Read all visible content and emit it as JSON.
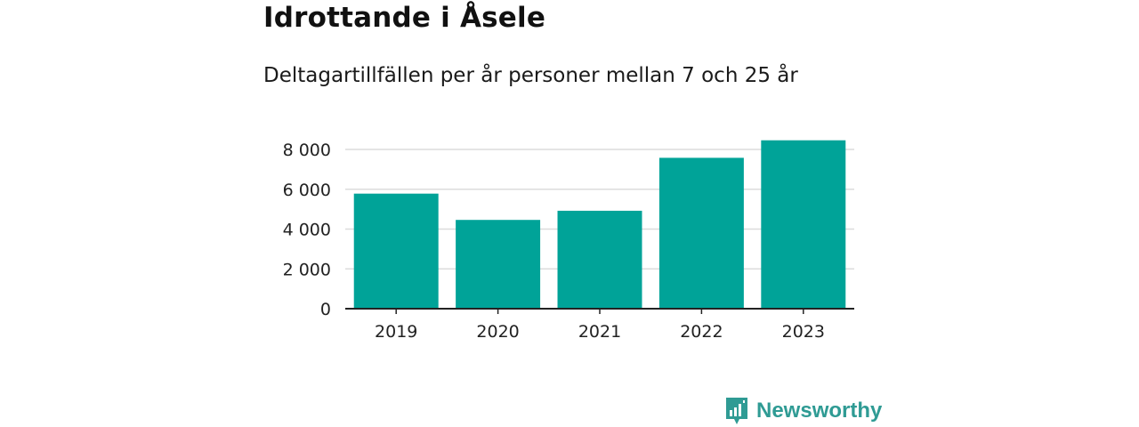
{
  "title": "Idrottande i Åsele",
  "subtitle": "Deltagartillfällen per år personer mellan 7 och 25 år",
  "brand": {
    "name": "Newsworthy",
    "icon": "newsworthy-logo-icon",
    "color": "#2f9b94"
  },
  "chart_data": {
    "type": "bar",
    "categories": [
      "2019",
      "2020",
      "2021",
      "2022",
      "2023"
    ],
    "values": [
      5780,
      4460,
      4920,
      7580,
      8460
    ],
    "ylim": [
      0,
      8000
    ],
    "yticks": [
      0,
      2000,
      4000,
      6000,
      8000
    ],
    "ytick_labels": [
      "0",
      "2 000",
      "4 000",
      "6 000",
      "8 000"
    ],
    "grid": true,
    "bar_color": "#00a398"
  }
}
